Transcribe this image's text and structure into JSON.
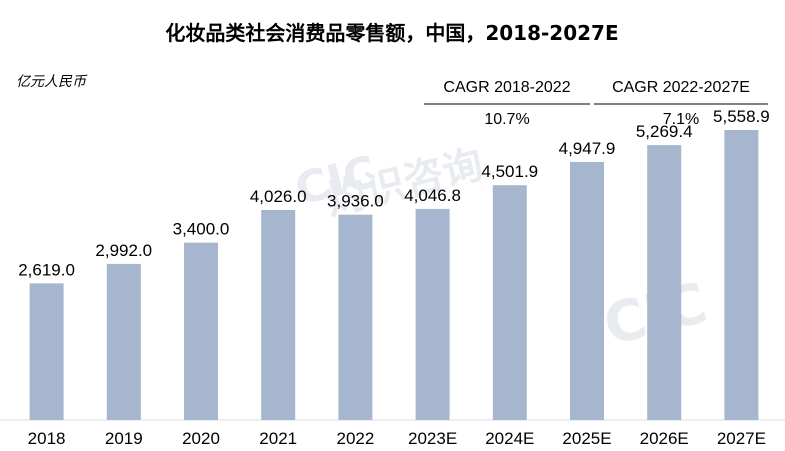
{
  "chart_data": {
    "type": "bar",
    "title": "化妆品类社会消费品零售额，中国，2018-2027E",
    "unit_label": "亿元人民币",
    "categories": [
      "2018",
      "2019",
      "2020",
      "2021",
      "2022",
      "2023E",
      "2024E",
      "2025E",
      "2026E",
      "2027E"
    ],
    "values": [
      2619.0,
      2992.0,
      3400.0,
      4026.0,
      3936.0,
      4046.8,
      4501.9,
      4947.9,
      5269.4,
      5558.9
    ],
    "value_labels": [
      "2,619.0",
      "2,992.0",
      "3,400.0",
      "4,026.0",
      "3,936.0",
      "4,046.8",
      "4,501.9",
      "4,947.9",
      "5,269.4",
      "5,558.9"
    ],
    "ylim": [
      0,
      6000
    ],
    "grid": false,
    "bar_color": "#a6b6cf",
    "cagr": [
      {
        "label": "CAGR 2018-2022",
        "value": "10.7%"
      },
      {
        "label": "CAGR 2022-2027E",
        "value": "7.1%"
      }
    ]
  }
}
